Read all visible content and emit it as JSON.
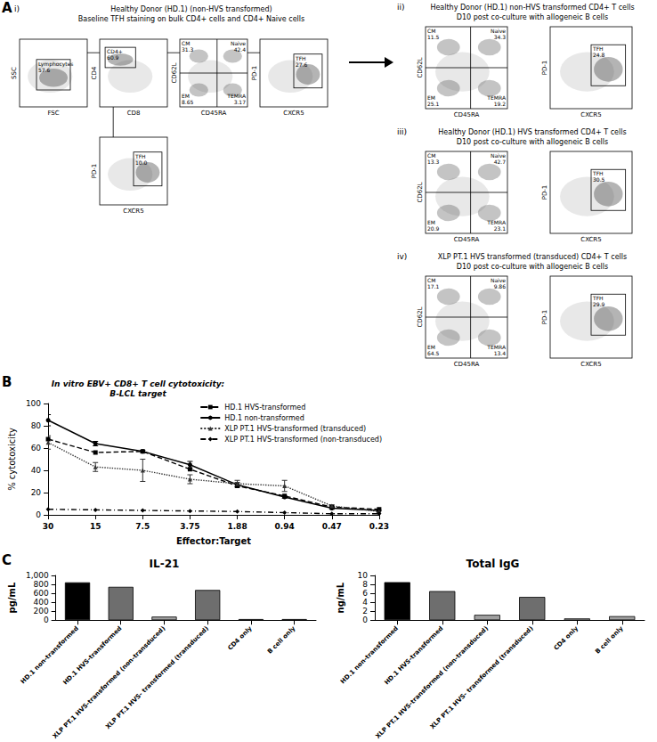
{
  "panel_a": {
    "letter": "A",
    "sections": [
      {
        "tag": "i)",
        "title": [
          "Healthy Donor (HD.1) (non-HVS transformed)",
          "Baseline TFH staining on bulk CD4+ cells and CD4+ Naive cells"
        ],
        "plots": [
          {
            "x": "FSC",
            "y": "SSC",
            "gates": [
              {
                "label": "Lymphocytes",
                "value": "57.6"
              }
            ]
          },
          {
            "x": "CD8",
            "y": "CD4",
            "gates": [
              {
                "label": "CD4+",
                "value": "60.9"
              }
            ]
          },
          {
            "x": "CD45RA",
            "y": "CD62L",
            "quadrants": [
              {
                "label": "CM",
                "value": "31.3"
              },
              {
                "label": "Naive",
                "value": "42.4"
              },
              {
                "label": "EM",
                "value": "8.65"
              },
              {
                "label": "TEMRA",
                "value": "3.17"
              }
            ]
          },
          {
            "x": "CXCR5",
            "y": "PD-1",
            "gates": [
              {
                "label": "TFH",
                "value": "27.6"
              }
            ]
          },
          {
            "x": "CXCR5",
            "y": "PD-1",
            "gates": [
              {
                "label": "TFH",
                "value": "10.0"
              }
            ]
          }
        ]
      },
      {
        "tag": "ii)",
        "title": [
          "Healthy Donor (HD.1) non-HVS transformed CD4+ T cells",
          "D10 post co-culture with allogeneic B cells"
        ],
        "plots": [
          {
            "x": "CD45RA",
            "y": "CD62L",
            "quadrants": [
              {
                "label": "CM",
                "value": "11.5"
              },
              {
                "label": "Naive",
                "value": "34.3"
              },
              {
                "label": "EM",
                "value": "25.1"
              },
              {
                "label": "TEMRA",
                "value": "19.2"
              }
            ]
          },
          {
            "x": "CXCR5",
            "y": "PD-1",
            "gates": [
              {
                "label": "TFH",
                "value": "24.8"
              }
            ]
          }
        ]
      },
      {
        "tag": "iii)",
        "title": [
          "Healthy Donor (HD.1) HVS transformed CD4+ T cells",
          "D10 post co-culture with allogeneic B cells"
        ],
        "plots": [
          {
            "x": "CD45RA",
            "y": "CD62L",
            "quadrants": [
              {
                "label": "CM",
                "value": "13.3"
              },
              {
                "label": "Naive",
                "value": "42.7"
              },
              {
                "label": "EM",
                "value": "20.9"
              },
              {
                "label": "TEMRA",
                "value": "23.1"
              }
            ]
          },
          {
            "x": "CXCR5",
            "y": "PD-1",
            "gates": [
              {
                "label": "TFH",
                "value": "30.5"
              }
            ]
          }
        ]
      },
      {
        "tag": "iv)",
        "title": [
          "XLP PT.1 HVS transformed (transduced) CD4+ T cells",
          "D10 post co-culture with allogeneic B cells"
        ],
        "plots": [
          {
            "x": "CD45RA",
            "y": "CD62L",
            "quadrants": [
              {
                "label": "CM",
                "value": "17.1"
              },
              {
                "label": "Naive",
                "value": "9.86"
              },
              {
                "label": "EM",
                "value": "64.5"
              },
              {
                "label": "TEMRA",
                "value": "13.4"
              }
            ]
          },
          {
            "x": "CXCR5",
            "y": "PD-1",
            "gates": [
              {
                "label": "TFH",
                "value": "29.9"
              }
            ]
          }
        ]
      }
    ]
  },
  "chart_data": [
    {
      "type": "line",
      "letter": "B",
      "title": "In vitro EBV+ CD8+ T cell cytotoxicity:\nB-LCL target",
      "x_label": "Effector:Target",
      "y_label": "% cytotoxicity",
      "categories": [
        "30",
        "15",
        "7.5",
        "3.75",
        "1.88",
        "0.94",
        "0.47",
        "0.23"
      ],
      "ylim": [
        0,
        100
      ],
      "yticks": [
        0,
        20,
        40,
        60,
        80,
        100
      ],
      "grid": false,
      "legend": "upper right",
      "series": [
        {
          "name": "HD.1 HVS-transformed",
          "color": "#000000",
          "marker": "square",
          "line_style": "dashed",
          "values": [
            68,
            56,
            57,
            41,
            26,
            17,
            7,
            5
          ]
        },
        {
          "name": "HD.1 non-transformed",
          "color": "#000000",
          "marker": "circle",
          "line_style": "solid",
          "values": [
            85,
            64,
            57,
            45,
            27,
            16,
            6,
            4
          ],
          "errors": [
            5,
            2,
            1,
            3,
            2,
            1,
            1,
            1
          ]
        },
        {
          "name": "XLP PT.1 HVS-transformed (transduced)",
          "color": "#333333",
          "marker": "triangle",
          "line_style": "dotted",
          "values": [
            65,
            43,
            40,
            32,
            28,
            26,
            8,
            3
          ],
          "errors": [
            6,
            4,
            10,
            4,
            3,
            5,
            1,
            1
          ]
        },
        {
          "name": "XLP PT.1 HVS-transformed (non-transduced)",
          "color": "#000000",
          "marker": "diamond",
          "line_style": "dashdot",
          "values": [
            5,
            4.5,
            4,
            3.5,
            3,
            2,
            1,
            1
          ]
        }
      ]
    },
    {
      "type": "bar",
      "letter": "C",
      "title": "IL-21",
      "y_label": "pg/mL",
      "categories": [
        "HD.1 non-transformed",
        "HD.1 HVS-transformed",
        "XLP PT.1 HVS-transformed (non-transduced)",
        "XLP PT.1 HVS- transformed (transduced)",
        "CD4 only",
        "B cell only"
      ],
      "values": [
        845,
        745,
        80,
        675,
        25,
        25
      ],
      "colors": [
        "#000000",
        "#6e6e6e",
        "#a0a0a0",
        "#6e6e6e",
        "#d9d9d9",
        "#a0a0a0"
      ],
      "ylim": [
        0,
        1000
      ],
      "yticks": [
        0,
        200,
        400,
        600,
        800,
        1000
      ],
      "grid": false
    },
    {
      "type": "bar",
      "title": "Total IgG",
      "y_label": "ng/mL",
      "categories": [
        "HD.1 non-transformed",
        "HD.1 HVS-transformed",
        "XLP PT.1 HVS-transformed (non-transduced)",
        "XLP PT.1 HVS- transformed (transduced)",
        "CD4 only",
        "B cell only"
      ],
      "values": [
        8.5,
        6.5,
        1.2,
        5.2,
        0.4,
        0.9
      ],
      "colors": [
        "#000000",
        "#6e6e6e",
        "#a0a0a0",
        "#6e6e6e",
        "#d9d9d9",
        "#a0a0a0"
      ],
      "ylim": [
        0,
        10
      ],
      "yticks": [
        0,
        2,
        4,
        6,
        8,
        10
      ],
      "grid": false
    }
  ]
}
